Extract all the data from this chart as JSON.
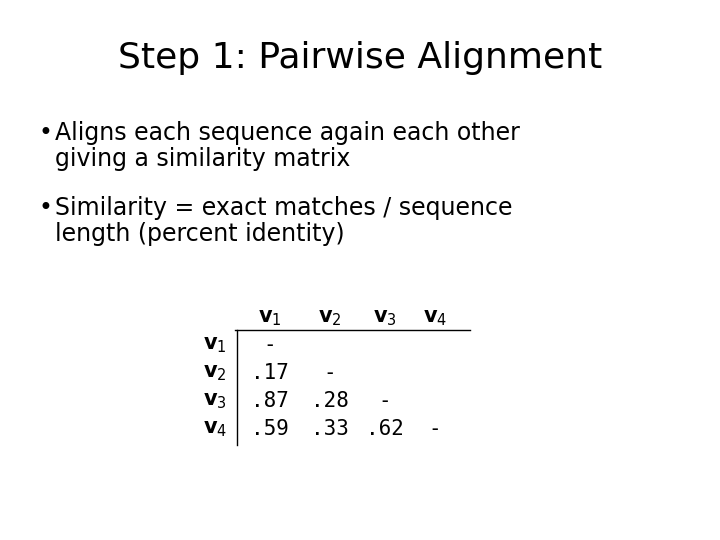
{
  "title": "Step 1: Pairwise Alignment",
  "bullet1_line1": "Aligns each sequence again each other",
  "bullet1_line2": "giving a similarity matrix",
  "bullet2_line1": "Similarity = exact matches / sequence",
  "bullet2_line2": "length (percent identity)",
  "bg_color": "#ffffff",
  "text_color": "#000000",
  "title_fontsize": 26,
  "bullet_fontsize": 17,
  "matrix_fontsize": 15,
  "matrix_data": [
    [
      "-",
      "",
      "",
      ""
    ],
    [
      ".17",
      "-",
      "",
      ""
    ],
    [
      ".87",
      ".28",
      "-",
      ""
    ],
    [
      ".59",
      ".33",
      ".62",
      "-"
    ]
  ]
}
